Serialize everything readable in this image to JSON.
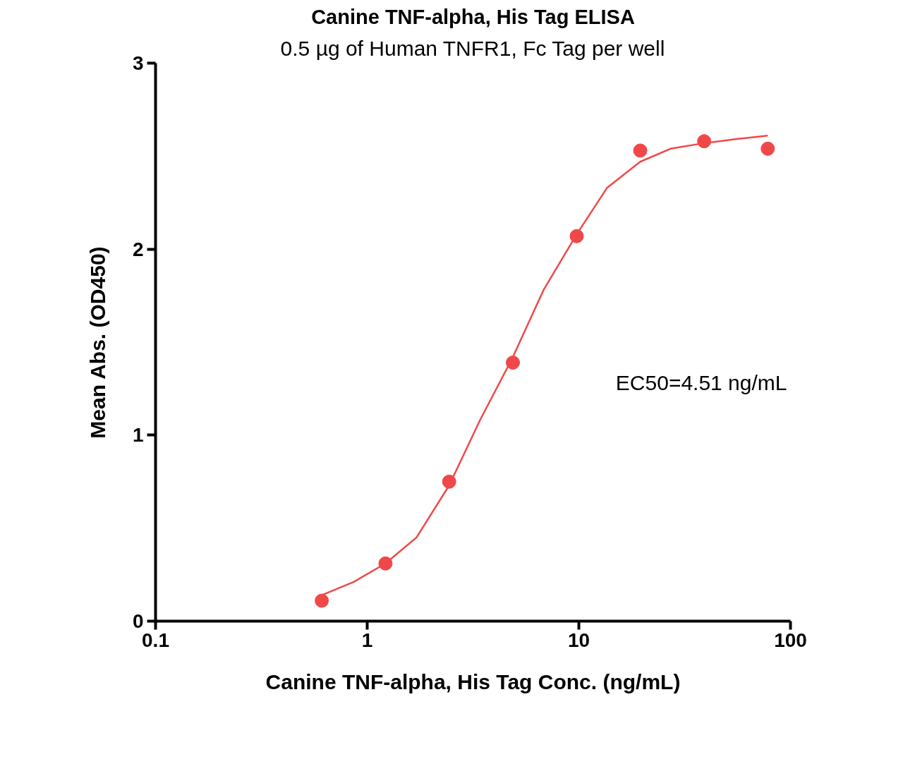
{
  "chart_data": {
    "type": "scatter",
    "title": "Canine TNF-alpha, His Tag ELISA",
    "subtitle": "0.5 µg of Human TNFR1, Fc Tag per well",
    "xlabel": "Canine TNF-alpha, His Tag Conc. (ng/mL)",
    "ylabel": "Mean Abs. (OD450)",
    "annotations": [
      "EC50=4.51 ng/mL"
    ],
    "log": "x",
    "xlim": [
      0.1,
      100
    ],
    "xticks": [
      0.1,
      1,
      10,
      100
    ],
    "ylim": [
      0,
      3
    ],
    "yticks": [
      0,
      1,
      2,
      3
    ],
    "grid": false,
    "series": [
      {
        "marker": "circle",
        "color": "#f04848",
        "x": [
          0.61,
          1.22,
          2.44,
          4.88,
          9.77,
          19.5,
          39.1,
          78.1
        ],
        "values": [
          0.11,
          0.31,
          0.75,
          1.39,
          2.07,
          2.53,
          2.58,
          2.54
        ]
      },
      {
        "type": "line",
        "line_style": "solid",
        "color": "#f04848",
        "x": [
          0.61,
          0.86,
          1.22,
          1.71,
          2.44,
          3.41,
          4.88,
          6.81,
          9.77,
          13.6,
          19.5,
          27.1,
          39.1,
          54.1,
          78.1
        ],
        "values": [
          0.14,
          0.21,
          0.31,
          0.45,
          0.73,
          1.08,
          1.42,
          1.78,
          2.08,
          2.33,
          2.47,
          2.54,
          2.57,
          2.59,
          2.61
        ]
      }
    ]
  }
}
